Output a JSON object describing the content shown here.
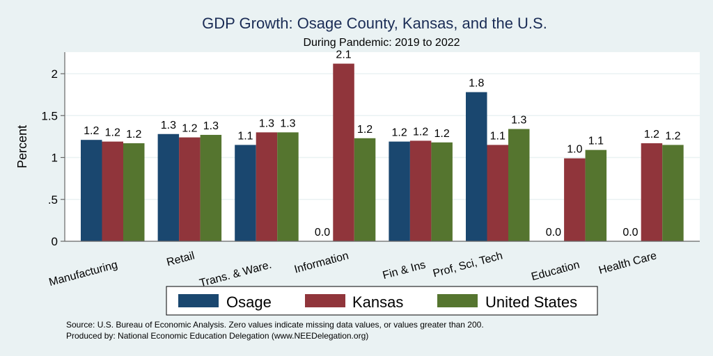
{
  "chart_data": {
    "type": "bar",
    "title": "GDP Growth: Osage County, Kansas, and the U.S.",
    "subtitle": "During Pandemic: 2019 to 2022",
    "xlabel": "",
    "ylabel": "Percent",
    "ylim": [
      0,
      2.25
    ],
    "yticks": [
      0,
      0.5,
      1,
      1.5,
      2
    ],
    "ytick_labels": [
      "0",
      ".5",
      "1",
      "1.5",
      "2"
    ],
    "grid": true,
    "categories": [
      "Manufacturing",
      "Retail",
      "Trans. & Ware.",
      "Information",
      "Fin & Ins",
      "Prof, Sci, Tech",
      "Education",
      "Health Care"
    ],
    "series": [
      {
        "name": "Osage",
        "color": "#1a476f",
        "values": [
          1.21,
          1.28,
          1.15,
          0.0,
          1.19,
          1.78,
          0.0,
          0.0
        ],
        "labels": [
          "1.2",
          "1.3",
          "1.1",
          "0.0",
          "1.2",
          "1.8",
          "0.0",
          "0.0"
        ]
      },
      {
        "name": "Kansas",
        "color": "#90353b",
        "values": [
          1.19,
          1.24,
          1.3,
          2.12,
          1.2,
          1.15,
          0.99,
          1.17
        ],
        "labels": [
          "1.2",
          "1.2",
          "1.3",
          "2.1",
          "1.2",
          "1.1",
          "1.0",
          "1.2"
        ]
      },
      {
        "name": "United States",
        "color": "#55752f",
        "values": [
          1.17,
          1.27,
          1.3,
          1.23,
          1.18,
          1.34,
          1.09,
          1.15
        ],
        "labels": [
          "1.2",
          "1.3",
          "1.3",
          "1.2",
          "1.2",
          "1.3",
          "1.1",
          "1.2"
        ]
      }
    ],
    "legend_position": "bottom",
    "notes": [
      "Source: U.S. Bureau of Economic Analysis. Zero values indicate missing data values, or values greater than 200.",
      "Produced by: National Economic Education Delegation (www.NEEDelegation.org)"
    ]
  }
}
